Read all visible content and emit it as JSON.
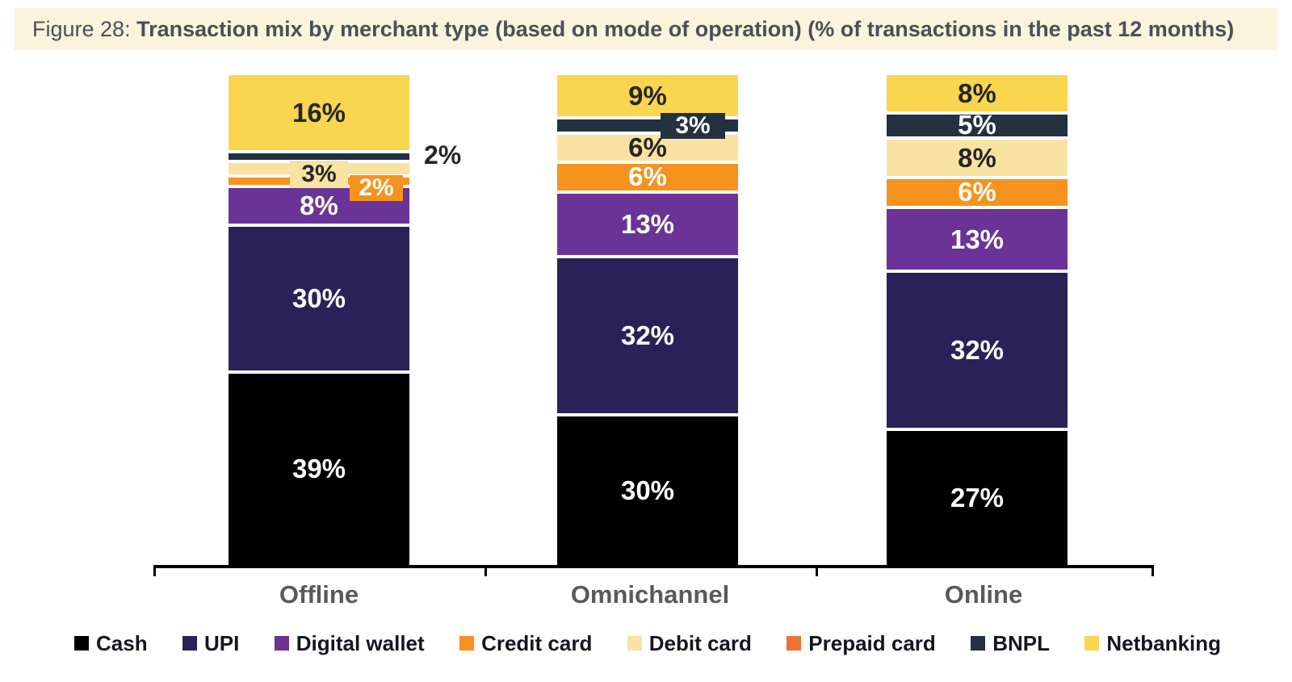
{
  "figure": {
    "label": "Figure 28: ",
    "title": "Transaction mix by merchant type (based on mode of operation) (% of transactions in the past 12 months)"
  },
  "chart_data": {
    "type": "bar",
    "stacked": true,
    "percent_unit": "%",
    "title": "Transaction mix by merchant type (based on mode of operation) (% of transactions in the past 12 months)",
    "categories": [
      "Offline",
      "Omnichannel",
      "Online"
    ],
    "series": [
      {
        "name": "Cash",
        "color": "#000000",
        "values": [
          39,
          30,
          27
        ]
      },
      {
        "name": "UPI",
        "color": "#2A2158",
        "values": [
          30,
          32,
          32
        ]
      },
      {
        "name": "Digital wallet",
        "color": "#6A3397",
        "values": [
          8,
          13,
          13
        ]
      },
      {
        "name": "Credit card",
        "color": "#F6921E",
        "values": [
          2,
          6,
          6
        ]
      },
      {
        "name": "Debit card",
        "color": "#F8E3A3",
        "values": [
          3,
          6,
          8
        ]
      },
      {
        "name": "Prepaid card",
        "color": "#ED7131",
        "values": [
          0,
          0,
          0
        ]
      },
      {
        "name": "BNPL",
        "color": "#233140",
        "values": [
          2,
          3,
          5
        ]
      },
      {
        "name": "Netbanking",
        "color": "#FAD64F",
        "values": [
          16,
          9,
          8
        ]
      }
    ],
    "data_labels": {
      "Offline": {
        "Cash": "39%",
        "UPI": "30%",
        "Digital wallet": "8%",
        "Credit card": "2%",
        "Debit card": "3%",
        "BNPL": "2%",
        "Netbanking": "16%"
      },
      "Omnichannel": {
        "Cash": "30%",
        "UPI": "32%",
        "Digital wallet": "13%",
        "Credit card": "6%",
        "Debit card": "6%",
        "BNPL": "3%",
        "Netbanking": "9%"
      },
      "Online": {
        "Cash": "27%",
        "UPI": "32%",
        "Digital wallet": "13%",
        "Credit card": "6%",
        "Debit card": "8%",
        "BNPL": "5%",
        "Netbanking": "8%"
      }
    },
    "label_placements": {
      "Offline": {
        "Debit card": "chip-center",
        "Credit card": "chip-right",
        "BNPL": "outside-right"
      },
      "Omnichannel": {
        "BNPL": "chip-edge-right"
      }
    },
    "legend": [
      "Cash",
      "UPI",
      "Digital wallet",
      "Credit card",
      "Debit card",
      "Prepaid card",
      "BNPL",
      "Netbanking"
    ],
    "legend_position": "bottom",
    "axis": {
      "baseline": true,
      "gridlines": false,
      "value_axis_hidden": true
    }
  }
}
